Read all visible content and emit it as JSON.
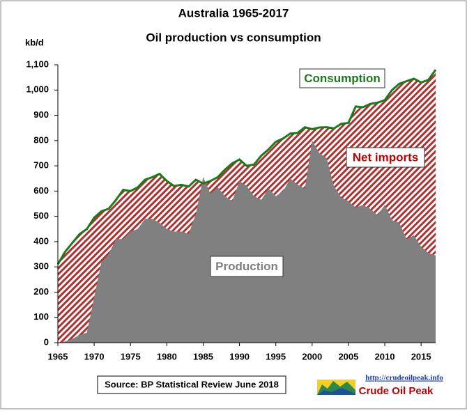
{
  "chart_data": {
    "type": "area",
    "title": "Australia  1965-2017",
    "subtitle": "Oil production vs consumption",
    "y_label": "kb/d",
    "annotation": "Net imports",
    "source": "Source: BP Statistical Review  June 2018",
    "logo_url": "http://crudeoilpeak.info",
    "logo_name": "Crude Oil Peak",
    "x": [
      1965,
      1966,
      1967,
      1968,
      1969,
      1970,
      1971,
      1972,
      1973,
      1974,
      1975,
      1976,
      1977,
      1978,
      1979,
      1980,
      1981,
      1982,
      1983,
      1984,
      1985,
      1986,
      1987,
      1988,
      1989,
      1990,
      1991,
      1992,
      1993,
      1994,
      1995,
      1996,
      1997,
      1998,
      1999,
      2000,
      2001,
      2002,
      2003,
      2004,
      2005,
      2006,
      2007,
      2008,
      2009,
      2010,
      2011,
      2012,
      2013,
      2014,
      2015,
      2016,
      2017
    ],
    "series": [
      {
        "name": "Consumption",
        "color": "#1a7a1a",
        "values": [
          310,
          360,
          395,
          430,
          450,
          495,
          520,
          530,
          565,
          605,
          600,
          615,
          645,
          655,
          668,
          640,
          620,
          625,
          618,
          645,
          630,
          640,
          655,
          685,
          710,
          725,
          700,
          705,
          740,
          765,
          795,
          808,
          828,
          830,
          853,
          845,
          852,
          853,
          848,
          866,
          870,
          935,
          932,
          945,
          950,
          960,
          1000,
          1025,
          1035,
          1045,
          1030,
          1040,
          1080
        ]
      },
      {
        "name": "Production",
        "color": "#808080",
        "values": [
          0,
          5,
          15,
          30,
          40,
          180,
          320,
          350,
          410,
          410,
          440,
          450,
          490,
          490,
          475,
          450,
          440,
          440,
          430,
          510,
          655,
          590,
          615,
          580,
          560,
          640,
          620,
          580,
          565,
          610,
          580,
          600,
          650,
          625,
          610,
          800,
          750,
          730,
          620,
          575,
          560,
          535,
          545,
          530,
          505,
          545,
          485,
          475,
          410,
          425,
          380,
          355,
          345
        ]
      }
    ],
    "net_imports_color": "#c00000",
    "xlim": [
      1965,
      2017
    ],
    "xticks": [
      1965,
      1970,
      1975,
      1980,
      1985,
      1990,
      1995,
      2000,
      2005,
      2010,
      2015
    ],
    "ylim": [
      0,
      1100
    ],
    "yticks": [
      0,
      100,
      200,
      300,
      400,
      500,
      600,
      700,
      800,
      900,
      {
        "value": 1000,
        "label": "1,000"
      },
      {
        "value": 1100,
        "label": "1,100"
      }
    ]
  }
}
